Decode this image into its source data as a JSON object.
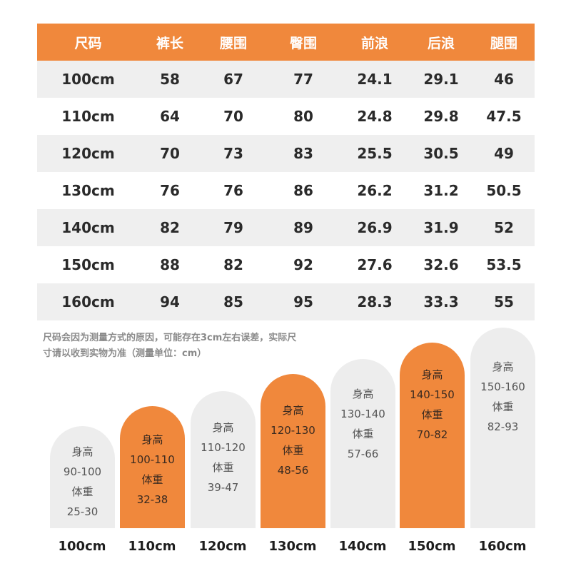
{
  "table": {
    "headers": [
      "尺码",
      "裤长",
      "腰围",
      "臀围",
      "前浪",
      "后浪",
      "腿围"
    ],
    "rows": [
      [
        "100cm",
        "58",
        "67",
        "77",
        "24.1",
        "29.1",
        "46"
      ],
      [
        "110cm",
        "64",
        "70",
        "80",
        "24.8",
        "29.8",
        "47.5"
      ],
      [
        "120cm",
        "70",
        "73",
        "83",
        "25.5",
        "30.5",
        "49"
      ],
      [
        "130cm",
        "76",
        "76",
        "86",
        "26.2",
        "31.2",
        "50.5"
      ],
      [
        "140cm",
        "82",
        "79",
        "89",
        "26.9",
        "31.9",
        "52"
      ],
      [
        "150cm",
        "88",
        "82",
        "92",
        "27.6",
        "32.6",
        "53.5"
      ],
      [
        "160cm",
        "94",
        "85",
        "95",
        "28.3",
        "33.3",
        "55"
      ]
    ]
  },
  "note": {
    "line1": "尺码会因为测量方式的原因，可能存在3cm左右误差，实际尺",
    "line2": "寸请以收到实物为准（测量单位：cm）"
  },
  "bars": [
    {
      "height_label": "身高",
      "height": "90-100",
      "weight_label": "体重",
      "weight": "25-30",
      "size": "100cm"
    },
    {
      "height_label": "身高",
      "height": "100-110",
      "weight_label": "体重",
      "weight": "32-38",
      "size": "110cm"
    },
    {
      "height_label": "身高",
      "height": "110-120",
      "weight_label": "体重",
      "weight": "39-47",
      "size": "120cm"
    },
    {
      "height_label": "身高",
      "height": "120-130",
      "weight_label": "体重",
      "weight": "48-56",
      "size": "130cm"
    },
    {
      "height_label": "身高",
      "height": "130-140",
      "weight_label": "体重",
      "weight": "57-66",
      "size": "140cm"
    },
    {
      "height_label": "身高",
      "height": "140-150",
      "weight_label": "体重",
      "weight": "70-82",
      "size": "150cm"
    },
    {
      "height_label": "身高",
      "height": "150-160",
      "weight_label": "体重",
      "weight": "82-93",
      "size": "160cm"
    }
  ],
  "colors": {
    "accent": "#f0883c",
    "row_shade": "#efefef",
    "bar_gray": "#ededed"
  }
}
